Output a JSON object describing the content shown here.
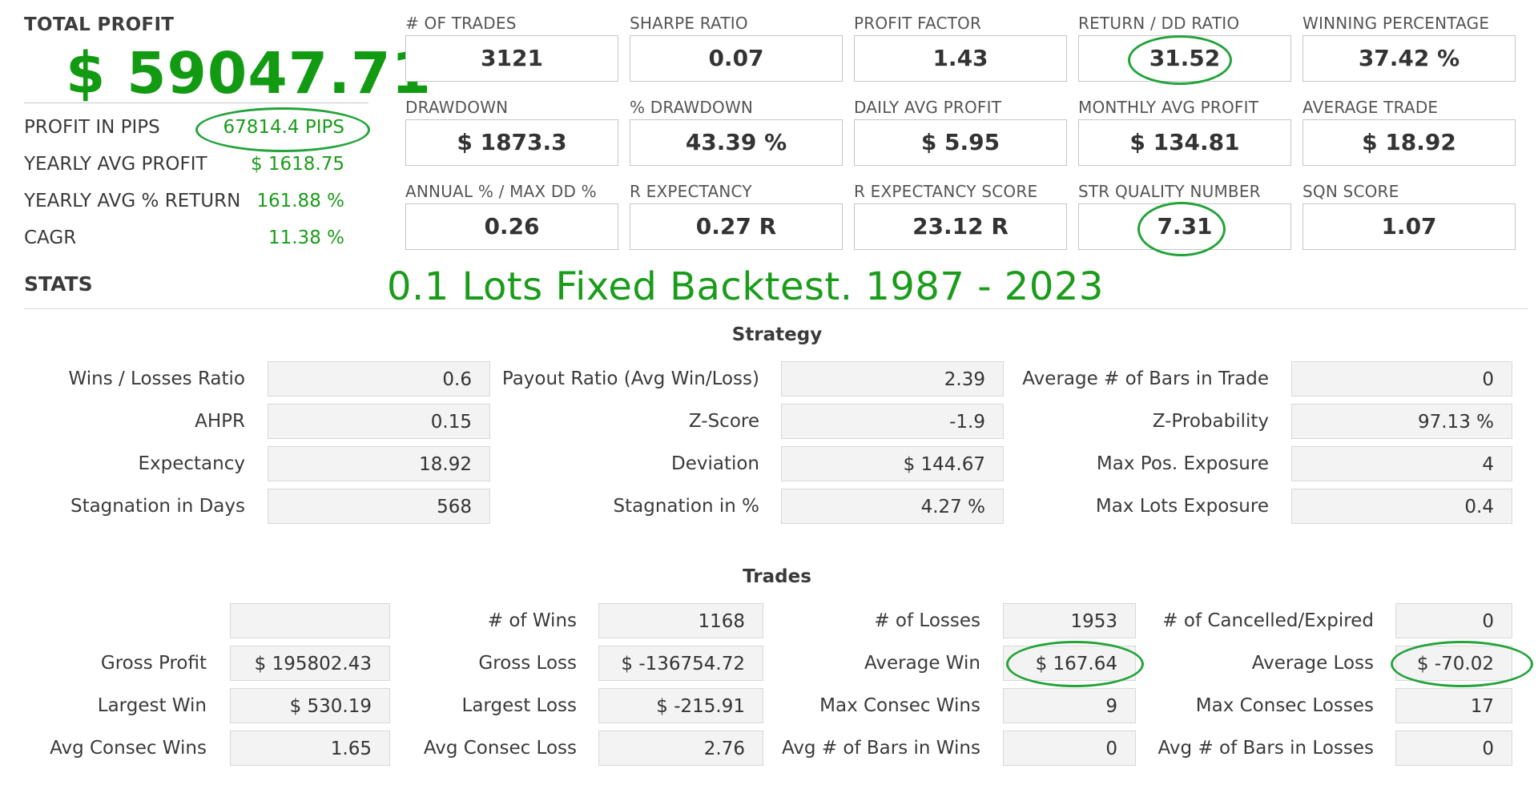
{
  "summary": {
    "total_profit_label": "TOTAL PROFIT",
    "total_profit_value": "$ 59047.71",
    "rows": [
      {
        "label": "PROFIT IN PIPS",
        "value": "67814.4 PIPS"
      },
      {
        "label": "YEARLY AVG PROFIT",
        "value": "$ 1618.75"
      },
      {
        "label": "YEARLY AVG % RETURN",
        "value": "161.88 %"
      },
      {
        "label": "CAGR",
        "value": "11.38 %"
      }
    ]
  },
  "metrics": [
    {
      "label": "# OF TRADES",
      "value": "3121"
    },
    {
      "label": "SHARPE RATIO",
      "value": "0.07"
    },
    {
      "label": "PROFIT FACTOR",
      "value": "1.43"
    },
    {
      "label": "RETURN / DD RATIO",
      "value": "31.52"
    },
    {
      "label": "WINNING PERCENTAGE",
      "value": "37.42 %"
    },
    {
      "label": "DRAWDOWN",
      "value": "$ 1873.3"
    },
    {
      "label": "% DRAWDOWN",
      "value": "43.39 %"
    },
    {
      "label": "DAILY AVG PROFIT",
      "value": "$ 5.95"
    },
    {
      "label": "MONTHLY AVG PROFIT",
      "value": "$ 134.81"
    },
    {
      "label": "AVERAGE TRADE",
      "value": "$ 18.92"
    },
    {
      "label": "ANNUAL % / MAX DD %",
      "value": "0.26"
    },
    {
      "label": "R EXPECTANCY",
      "value": "0.27 R"
    },
    {
      "label": "R EXPECTANCY SCORE",
      "value": "23.12 R"
    },
    {
      "label": "STR QUALITY NUMBER",
      "value": "7.31"
    },
    {
      "label": "SQN SCORE",
      "value": "1.07"
    }
  ],
  "stats_label": "STATS",
  "backtest_note": "0.1 Lots Fixed Backtest. 1987 - 2023",
  "strategy": {
    "title": "Strategy",
    "col1": [
      {
        "label": "Wins / Losses Ratio",
        "value": "0.6"
      },
      {
        "label": "AHPR",
        "value": "0.15"
      },
      {
        "label": "Expectancy",
        "value": "18.92"
      },
      {
        "label": "Stagnation in Days",
        "value": "568"
      }
    ],
    "col2": [
      {
        "label": "Payout Ratio (Avg Win/Loss)",
        "value": "2.39"
      },
      {
        "label": "Z-Score",
        "value": "-1.9"
      },
      {
        "label": "Deviation",
        "value": "$ 144.67"
      },
      {
        "label": "Stagnation in %",
        "value": "4.27 %"
      }
    ],
    "col3": [
      {
        "label": "Average # of Bars in Trade",
        "value": "0"
      },
      {
        "label": "Z-Probability",
        "value": "97.13 %"
      },
      {
        "label": "Max Pos. Exposure",
        "value": "4"
      },
      {
        "label": "Max Lots Exposure",
        "value": "0.4"
      }
    ]
  },
  "trades": {
    "title": "Trades",
    "col1": [
      {
        "label": "",
        "value": ""
      },
      {
        "label": "Gross Profit",
        "value": "$ 195802.43"
      },
      {
        "label": "Largest Win",
        "value": "$ 530.19"
      },
      {
        "label": "Avg Consec Wins",
        "value": "1.65"
      }
    ],
    "col2": [
      {
        "label": "# of Wins",
        "value": "1168"
      },
      {
        "label": "Gross Loss",
        "value": "$ -136754.72"
      },
      {
        "label": "Largest Loss",
        "value": "$ -215.91"
      },
      {
        "label": "Avg Consec Loss",
        "value": "2.76"
      }
    ],
    "col3": [
      {
        "label": "# of Losses",
        "value": "1953"
      },
      {
        "label": "Average Win",
        "value": "$ 167.64"
      },
      {
        "label": "Max Consec Wins",
        "value": "9"
      },
      {
        "label": "Avg # of Bars in Wins",
        "value": "0"
      }
    ],
    "col4": [
      {
        "label": "# of Cancelled/Expired",
        "value": "0"
      },
      {
        "label": "Average Loss",
        "value": "$ -70.02"
      },
      {
        "label": "Max Consec Losses",
        "value": "17"
      },
      {
        "label": "Avg # of Bars in Losses",
        "value": "0"
      }
    ]
  },
  "colors": {
    "accent_green": "#1a9c1a",
    "highlight_ring": "#23a33a"
  }
}
